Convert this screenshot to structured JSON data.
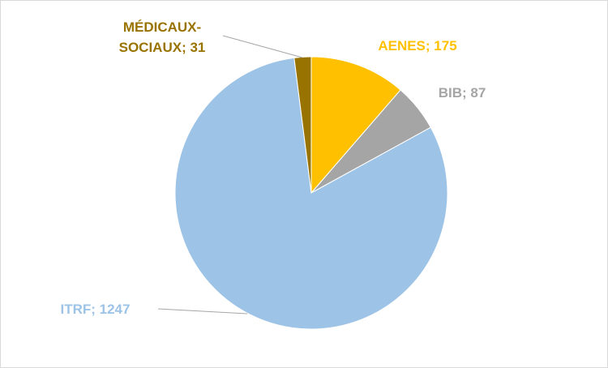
{
  "chart_data": {
    "type": "pie",
    "values": [
      175,
      87,
      1247,
      31
    ],
    "value_labels": [
      "AENES; 175",
      "BIB; 87",
      "ITRF; 1247",
      "MÉDICAUX-SOCIAUX; 31"
    ],
    "colors": [
      "#FFC000",
      "#A5A5A5",
      "#9DC3E6",
      "#997300"
    ]
  }
}
